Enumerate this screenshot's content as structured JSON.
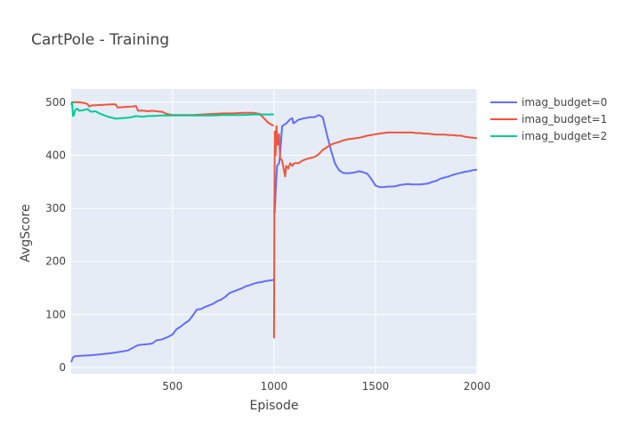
{
  "chart_data": {
    "type": "line",
    "title": "CartPole - Training",
    "xlabel": "Episode",
    "ylabel": "AvgScore",
    "xlim": [
      1,
      2000
    ],
    "ylim": [
      -12,
      525
    ],
    "x_ticks": [
      500,
      1000,
      1500,
      2000
    ],
    "y_ticks": [
      0,
      100,
      200,
      300,
      400,
      500
    ],
    "grid": true,
    "legend_position": "top-right",
    "background": "#e5ecf6",
    "series": [
      {
        "name": "imag_budget=0",
        "color": "#636efa",
        "points": [
          [
            1,
            10
          ],
          [
            10,
            19
          ],
          [
            20,
            21
          ],
          [
            50,
            22
          ],
          [
            100,
            23
          ],
          [
            150,
            25
          ],
          [
            200,
            27
          ],
          [
            250,
            30
          ],
          [
            280,
            32
          ],
          [
            300,
            36
          ],
          [
            330,
            42
          ],
          [
            350,
            43
          ],
          [
            380,
            44
          ],
          [
            400,
            45
          ],
          [
            420,
            51
          ],
          [
            450,
            53
          ],
          [
            480,
            58
          ],
          [
            500,
            62
          ],
          [
            520,
            72
          ],
          [
            540,
            77
          ],
          [
            560,
            83
          ],
          [
            580,
            88
          ],
          [
            600,
            98
          ],
          [
            620,
            109
          ],
          [
            640,
            110
          ],
          [
            660,
            114
          ],
          [
            700,
            120
          ],
          [
            720,
            125
          ],
          [
            740,
            128
          ],
          [
            760,
            133
          ],
          [
            780,
            140
          ],
          [
            800,
            143
          ],
          [
            820,
            146
          ],
          [
            840,
            149
          ],
          [
            860,
            153
          ],
          [
            880,
            155
          ],
          [
            900,
            158
          ],
          [
            920,
            160
          ],
          [
            940,
            161
          ],
          [
            960,
            163
          ],
          [
            999,
            165
          ]
        ]
      },
      {
        "name": "imag_budget=0",
        "color": "#636efa",
        "points": [
          [
            1000,
            295
          ],
          [
            1003,
            290
          ],
          [
            1008,
            330
          ],
          [
            1015,
            380
          ],
          [
            1025,
            385
          ],
          [
            1030,
            400
          ],
          [
            1040,
            455
          ],
          [
            1060,
            460
          ],
          [
            1080,
            468
          ],
          [
            1090,
            470
          ],
          [
            1095,
            460
          ],
          [
            1120,
            467
          ],
          [
            1150,
            470
          ],
          [
            1180,
            472
          ],
          [
            1200,
            472
          ],
          [
            1220,
            476
          ],
          [
            1240,
            472
          ],
          [
            1260,
            440
          ],
          [
            1280,
            410
          ],
          [
            1300,
            385
          ],
          [
            1320,
            372
          ],
          [
            1340,
            367
          ],
          [
            1360,
            366
          ],
          [
            1380,
            367
          ],
          [
            1400,
            368
          ],
          [
            1420,
            370
          ],
          [
            1440,
            368
          ],
          [
            1460,
            365
          ],
          [
            1480,
            355
          ],
          [
            1500,
            343
          ],
          [
            1520,
            340
          ],
          [
            1540,
            340
          ],
          [
            1560,
            341
          ],
          [
            1580,
            341
          ],
          [
            1600,
            342
          ],
          [
            1620,
            344
          ],
          [
            1640,
            345
          ],
          [
            1660,
            346
          ],
          [
            1680,
            345
          ],
          [
            1700,
            345
          ],
          [
            1720,
            345
          ],
          [
            1740,
            346
          ],
          [
            1760,
            347
          ],
          [
            1780,
            350
          ],
          [
            1800,
            352
          ],
          [
            1820,
            356
          ],
          [
            1840,
            358
          ],
          [
            1860,
            360
          ],
          [
            1880,
            363
          ],
          [
            1900,
            365
          ],
          [
            1920,
            367
          ],
          [
            1940,
            369
          ],
          [
            1960,
            370
          ],
          [
            1980,
            372
          ],
          [
            2000,
            373
          ]
        ]
      },
      {
        "name": "imag_budget=1",
        "color": "#ef553b",
        "points": [
          [
            1,
            500
          ],
          [
            40,
            500
          ],
          [
            60,
            499
          ],
          [
            80,
            497
          ],
          [
            90,
            492
          ],
          [
            100,
            494
          ],
          [
            150,
            495
          ],
          [
            200,
            496
          ],
          [
            220,
            496
          ],
          [
            230,
            490
          ],
          [
            260,
            491
          ],
          [
            300,
            492
          ],
          [
            320,
            493
          ],
          [
            330,
            484
          ],
          [
            360,
            484
          ],
          [
            380,
            483
          ],
          [
            400,
            484
          ],
          [
            420,
            483
          ],
          [
            450,
            482
          ],
          [
            470,
            478
          ],
          [
            500,
            476
          ],
          [
            550,
            476
          ],
          [
            600,
            476
          ],
          [
            650,
            477
          ],
          [
            700,
            478
          ],
          [
            750,
            479
          ],
          [
            800,
            479
          ],
          [
            850,
            480
          ],
          [
            900,
            480
          ],
          [
            930,
            478
          ],
          [
            950,
            470
          ],
          [
            970,
            462
          ],
          [
            990,
            457
          ],
          [
            999,
            456
          ]
        ]
      },
      {
        "name": "imag_budget=1",
        "color": "#ef553b",
        "points": [
          [
            1000,
            55
          ],
          [
            1002,
            300
          ],
          [
            1004,
            445
          ],
          [
            1008,
            400
          ],
          [
            1012,
            455
          ],
          [
            1018,
            420
          ],
          [
            1025,
            440
          ],
          [
            1030,
            395
          ],
          [
            1040,
            390
          ],
          [
            1050,
            370
          ],
          [
            1055,
            360
          ],
          [
            1060,
            380
          ],
          [
            1070,
            375
          ],
          [
            1080,
            385
          ],
          [
            1090,
            380
          ],
          [
            1100,
            385
          ],
          [
            1120,
            385
          ],
          [
            1140,
            390
          ],
          [
            1160,
            393
          ],
          [
            1180,
            395
          ],
          [
            1200,
            397
          ],
          [
            1220,
            402
          ],
          [
            1240,
            410
          ],
          [
            1260,
            415
          ],
          [
            1280,
            420
          ],
          [
            1300,
            423
          ],
          [
            1320,
            425
          ],
          [
            1340,
            428
          ],
          [
            1360,
            430
          ],
          [
            1380,
            431
          ],
          [
            1400,
            432
          ],
          [
            1420,
            433
          ],
          [
            1440,
            435
          ],
          [
            1460,
            437
          ],
          [
            1480,
            438
          ],
          [
            1500,
            440
          ],
          [
            1520,
            441
          ],
          [
            1540,
            442
          ],
          [
            1560,
            443
          ],
          [
            1580,
            443
          ],
          [
            1600,
            443
          ],
          [
            1620,
            443
          ],
          [
            1640,
            443
          ],
          [
            1660,
            443
          ],
          [
            1680,
            443
          ],
          [
            1700,
            442
          ],
          [
            1720,
            442
          ],
          [
            1740,
            441
          ],
          [
            1760,
            441
          ],
          [
            1780,
            440
          ],
          [
            1800,
            439
          ],
          [
            1820,
            439
          ],
          [
            1840,
            439
          ],
          [
            1860,
            438
          ],
          [
            1880,
            438
          ],
          [
            1900,
            437
          ],
          [
            1920,
            437
          ],
          [
            1940,
            435
          ],
          [
            1960,
            434
          ],
          [
            1980,
            433
          ],
          [
            2000,
            432
          ]
        ]
      },
      {
        "name": "imag_budget=2",
        "color": "#00cc96",
        "points": [
          [
            1,
            495
          ],
          [
            5,
            500
          ],
          [
            10,
            474
          ],
          [
            15,
            476
          ],
          [
            20,
            485
          ],
          [
            30,
            488
          ],
          [
            40,
            484
          ],
          [
            60,
            485
          ],
          [
            80,
            487
          ],
          [
            100,
            482
          ],
          [
            120,
            483
          ],
          [
            140,
            479
          ],
          [
            160,
            476
          ],
          [
            180,
            473
          ],
          [
            200,
            471
          ],
          [
            220,
            469
          ],
          [
            250,
            470
          ],
          [
            280,
            471
          ],
          [
            300,
            472
          ],
          [
            320,
            474
          ],
          [
            340,
            473
          ],
          [
            360,
            473
          ],
          [
            380,
            474
          ],
          [
            400,
            474
          ],
          [
            450,
            475
          ],
          [
            500,
            475
          ],
          [
            550,
            475
          ],
          [
            600,
            475
          ],
          [
            650,
            475
          ],
          [
            700,
            475
          ],
          [
            750,
            476
          ],
          [
            800,
            476
          ],
          [
            850,
            476
          ],
          [
            900,
            477
          ],
          [
            950,
            477
          ],
          [
            999,
            477
          ]
        ]
      }
    ]
  }
}
